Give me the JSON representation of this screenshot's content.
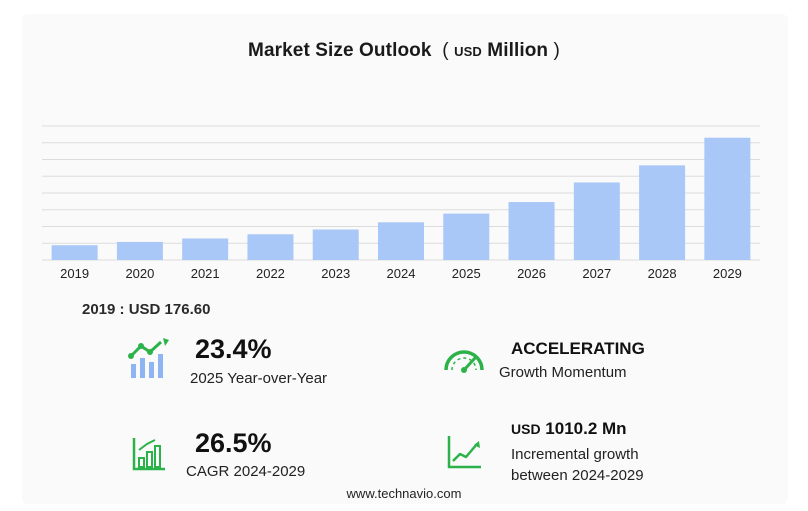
{
  "chart_data": {
    "type": "bar",
    "title": "Market Size Outlook",
    "title_unit_prefix": "USD",
    "title_unit": "Million",
    "categories": [
      "2019",
      "2020",
      "2021",
      "2022",
      "2023",
      "2024",
      "2025",
      "2026",
      "2027",
      "2028",
      "2029"
    ],
    "values": [
      176.6,
      216,
      257,
      307,
      364,
      450,
      554,
      692,
      926,
      1130,
      1460
    ],
    "ylim": [
      0,
      1600
    ],
    "grid": true,
    "bar_color": "#a9c7f7",
    "grid_color": "#dcdcdc"
  },
  "base_value": "2019 : USD  176.60",
  "stats": {
    "yoy": {
      "value": "23.4%",
      "label": "2025 Year-over-Year",
      "icon": "growth-chart-icon"
    },
    "momentum": {
      "value": "ACCELERATING",
      "label": "Growth Momentum",
      "icon": "speedometer-icon"
    },
    "cagr": {
      "value": "26.5%",
      "label": "CAGR 2024-2029",
      "icon": "bar-growth-icon"
    },
    "incremental": {
      "prefix": "USD",
      "value": "1010.2 Mn",
      "label_line1": "Incremental growth",
      "label_line2": "between 2024-2029",
      "icon": "trend-line-icon"
    }
  },
  "colors": {
    "accent_green": "#2bb34a",
    "bar_blue": "#a9c7f7",
    "icon_blue": "#8fb4f2"
  },
  "footer": "www.technavio.com"
}
